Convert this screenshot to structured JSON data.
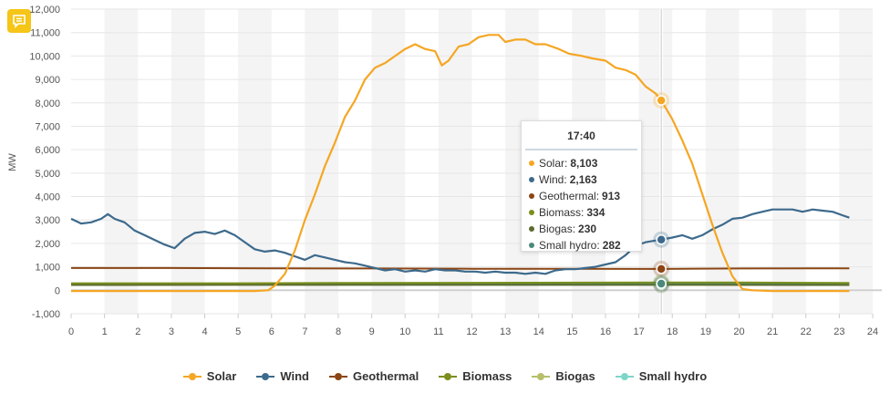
{
  "chart_data": {
    "type": "line",
    "title": "",
    "xlabel": "",
    "ylabel": "MW",
    "xlim": [
      0,
      24
    ],
    "ylim": [
      -1000,
      12000
    ],
    "x_ticks": [
      0,
      1,
      2,
      3,
      4,
      5,
      6,
      7,
      8,
      9,
      10,
      11,
      12,
      13,
      14,
      15,
      16,
      17,
      18,
      19,
      20,
      21,
      22,
      23,
      24
    ],
    "y_ticks": [
      -1000,
      0,
      1000,
      2000,
      3000,
      4000,
      5000,
      6000,
      7000,
      8000,
      9000,
      10000,
      11000,
      12000
    ],
    "x_tick_labels": [
      "0",
      "1",
      "2",
      "3",
      "4",
      "5",
      "6",
      "7",
      "8",
      "9",
      "10",
      "11",
      "12",
      "13",
      "14",
      "15",
      "16",
      "17",
      "18",
      "19",
      "20",
      "21",
      "22",
      "23",
      "24"
    ],
    "y_tick_labels": [
      "-1,000",
      "0",
      "1,000",
      "2,000",
      "3,000",
      "4,000",
      "5,000",
      "6,000",
      "7,000",
      "8,000",
      "9,000",
      "10,000",
      "11,000",
      "12,000"
    ],
    "series": [
      {
        "name": "Solar",
        "color": "#f5a623",
        "points": [
          [
            0,
            -30
          ],
          [
            5.5,
            -30
          ],
          [
            5.9,
            0
          ],
          [
            6.1,
            200
          ],
          [
            6.4,
            700
          ],
          [
            6.7,
            1700
          ],
          [
            7.0,
            3000
          ],
          [
            7.3,
            4100
          ],
          [
            7.6,
            5300
          ],
          [
            7.9,
            6300
          ],
          [
            8.2,
            7400
          ],
          [
            8.5,
            8100
          ],
          [
            8.8,
            9000
          ],
          [
            9.1,
            9500
          ],
          [
            9.4,
            9700
          ],
          [
            9.7,
            10000
          ],
          [
            10.0,
            10300
          ],
          [
            10.3,
            10500
          ],
          [
            10.6,
            10300
          ],
          [
            10.9,
            10200
          ],
          [
            11.1,
            9600
          ],
          [
            11.3,
            9800
          ],
          [
            11.6,
            10400
          ],
          [
            11.9,
            10500
          ],
          [
            12.2,
            10800
          ],
          [
            12.5,
            10900
          ],
          [
            12.8,
            10900
          ],
          [
            13.0,
            10600
          ],
          [
            13.3,
            10700
          ],
          [
            13.6,
            10700
          ],
          [
            13.9,
            10500
          ],
          [
            14.2,
            10500
          ],
          [
            14.6,
            10300
          ],
          [
            14.9,
            10100
          ],
          [
            15.3,
            10000
          ],
          [
            15.6,
            9900
          ],
          [
            16.0,
            9800
          ],
          [
            16.3,
            9500
          ],
          [
            16.6,
            9400
          ],
          [
            16.9,
            9200
          ],
          [
            17.2,
            8700
          ],
          [
            17.5,
            8400
          ],
          [
            17.67,
            8103
          ],
          [
            18.0,
            7300
          ],
          [
            18.3,
            6400
          ],
          [
            18.6,
            5400
          ],
          [
            18.9,
            4100
          ],
          [
            19.2,
            2800
          ],
          [
            19.5,
            1600
          ],
          [
            19.8,
            600
          ],
          [
            20.1,
            50
          ],
          [
            20.4,
            0
          ],
          [
            21,
            -30
          ],
          [
            23.3,
            -30
          ]
        ]
      },
      {
        "name": "Wind",
        "color": "#3d6a8c",
        "points": [
          [
            0,
            3050
          ],
          [
            0.3,
            2850
          ],
          [
            0.6,
            2900
          ],
          [
            0.9,
            3050
          ],
          [
            1.1,
            3250
          ],
          [
            1.3,
            3050
          ],
          [
            1.6,
            2900
          ],
          [
            1.9,
            2550
          ],
          [
            2.2,
            2350
          ],
          [
            2.5,
            2150
          ],
          [
            2.8,
            1950
          ],
          [
            3.1,
            1800
          ],
          [
            3.4,
            2200
          ],
          [
            3.7,
            2450
          ],
          [
            4.0,
            2500
          ],
          [
            4.3,
            2400
          ],
          [
            4.6,
            2550
          ],
          [
            4.9,
            2350
          ],
          [
            5.2,
            2050
          ],
          [
            5.5,
            1750
          ],
          [
            5.8,
            1650
          ],
          [
            6.1,
            1700
          ],
          [
            6.4,
            1600
          ],
          [
            6.7,
            1450
          ],
          [
            7.0,
            1300
          ],
          [
            7.3,
            1500
          ],
          [
            7.6,
            1400
          ],
          [
            7.9,
            1300
          ],
          [
            8.2,
            1200
          ],
          [
            8.5,
            1150
          ],
          [
            8.8,
            1050
          ],
          [
            9.1,
            950
          ],
          [
            9.4,
            850
          ],
          [
            9.7,
            900
          ],
          [
            10.0,
            800
          ],
          [
            10.3,
            850
          ],
          [
            10.6,
            800
          ],
          [
            10.9,
            900
          ],
          [
            11.2,
            850
          ],
          [
            11.5,
            850
          ],
          [
            11.8,
            800
          ],
          [
            12.1,
            800
          ],
          [
            12.4,
            750
          ],
          [
            12.7,
            800
          ],
          [
            13.0,
            750
          ],
          [
            13.3,
            750
          ],
          [
            13.6,
            700
          ],
          [
            13.9,
            750
          ],
          [
            14.2,
            700
          ],
          [
            14.5,
            850
          ],
          [
            14.8,
            900
          ],
          [
            15.1,
            900
          ],
          [
            15.4,
            950
          ],
          [
            15.7,
            1000
          ],
          [
            16.0,
            1100
          ],
          [
            16.3,
            1200
          ],
          [
            16.6,
            1500
          ],
          [
            16.9,
            1900
          ],
          [
            17.2,
            2050
          ],
          [
            17.67,
            2163
          ],
          [
            18.0,
            2250
          ],
          [
            18.3,
            2350
          ],
          [
            18.6,
            2200
          ],
          [
            18.9,
            2350
          ],
          [
            19.2,
            2600
          ],
          [
            19.5,
            2800
          ],
          [
            19.8,
            3050
          ],
          [
            20.1,
            3100
          ],
          [
            20.4,
            3250
          ],
          [
            20.7,
            3350
          ],
          [
            21.0,
            3450
          ],
          [
            21.3,
            3450
          ],
          [
            21.6,
            3450
          ],
          [
            21.9,
            3350
          ],
          [
            22.2,
            3450
          ],
          [
            22.5,
            3400
          ],
          [
            22.8,
            3350
          ],
          [
            23.1,
            3200
          ],
          [
            23.3,
            3100
          ]
        ]
      },
      {
        "name": "Geothermal",
        "color": "#8b4513",
        "points": [
          [
            0,
            950
          ],
          [
            3,
            950
          ],
          [
            6,
            940
          ],
          [
            9,
            930
          ],
          [
            12,
            920
          ],
          [
            15,
            915
          ],
          [
            17.67,
            913
          ],
          [
            20,
            930
          ],
          [
            23.3,
            940
          ]
        ]
      },
      {
        "name": "Biomass",
        "color": "#7a8f1c",
        "points": [
          [
            0,
            300
          ],
          [
            5,
            300
          ],
          [
            8,
            310
          ],
          [
            12,
            320
          ],
          [
            17.67,
            334
          ],
          [
            20,
            330
          ],
          [
            23.3,
            310
          ]
        ]
      },
      {
        "name": "Biogas",
        "color": "#5b6b2e",
        "points": [
          [
            0,
            225
          ],
          [
            6,
            228
          ],
          [
            12,
            230
          ],
          [
            17.67,
            230
          ],
          [
            23.3,
            225
          ]
        ]
      },
      {
        "name": "Small hydro",
        "color": "#4a8a7a",
        "points": [
          [
            0,
            270
          ],
          [
            6,
            275
          ],
          [
            12,
            280
          ],
          [
            17.67,
            282
          ],
          [
            20,
            280
          ],
          [
            23.3,
            275
          ]
        ]
      }
    ],
    "highlight_x": 17.67,
    "tooltip": {
      "title": "17:40",
      "rows": [
        {
          "label": "Solar:",
          "value": "8,103",
          "color": "#f5a623"
        },
        {
          "label": "Wind:",
          "value": "2,163",
          "color": "#3d6a8c"
        },
        {
          "label": "Geothermal:",
          "value": "913",
          "color": "#8b4513"
        },
        {
          "label": "Biomass:",
          "value": "334",
          "color": "#7a8f1c"
        },
        {
          "label": "Biogas:",
          "value": "230",
          "color": "#5b6b2e"
        },
        {
          "label": "Small hydro:",
          "value": "282",
          "color": "#4a8a7a"
        }
      ]
    },
    "legend": [
      {
        "label": "Solar",
        "color": "#f5a623"
      },
      {
        "label": "Wind",
        "color": "#3d6a8c"
      },
      {
        "label": "Geothermal",
        "color": "#8b4513"
      },
      {
        "label": "Biomass",
        "color": "#7a8f1c"
      },
      {
        "label": "Biogas",
        "color": "#b7bf6a"
      },
      {
        "label": "Small hydro",
        "color": "#7fd6c8"
      }
    ]
  }
}
